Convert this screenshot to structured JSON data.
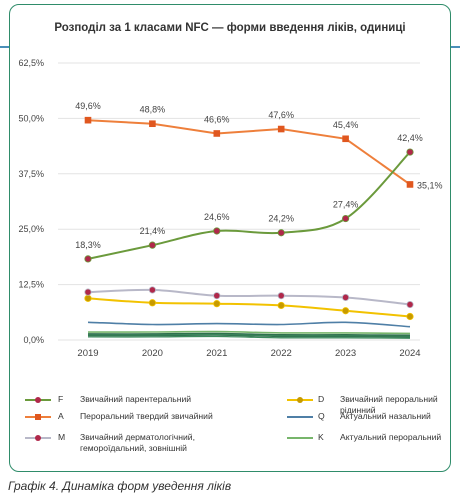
{
  "title": "Розподіл за 1 класами NFC — форми введення ліків, одиниці",
  "caption": "Графік 4. Динаміка форм уведення ліків",
  "colors": {
    "frame": "#2f8c6a",
    "topline": "#4a8fb8",
    "F": "#6b9a3c",
    "A": "#ee7f3b",
    "M": "#b8b8c8",
    "D": "#f2c200",
    "Q": "#4f7fa6",
    "K": "#77b56b",
    "marker": "#b0284a",
    "grid": "#e3e3e3"
  },
  "chart_data": {
    "type": "line",
    "title": "Розподіл за 1 класами NFC — форми введення ліків, одиниці",
    "categories": [
      "2019",
      "2020",
      "2021",
      "2022",
      "2023",
      "2024"
    ],
    "y_ticks": [
      "0,0%",
      "12,5%",
      "25,0%",
      "37,5%",
      "50,0%",
      "62,5%"
    ],
    "ylim": [
      0,
      62.5
    ],
    "grid": true,
    "legend_position": "bottom",
    "series": [
      {
        "code": "F",
        "name": "Звичайний парентеральний",
        "values": [
          18.3,
          21.4,
          24.6,
          24.2,
          27.4,
          42.4
        ],
        "labels": [
          "18,3%",
          "21,4%",
          "24,6%",
          "24,2%",
          "27,4%",
          "42,4%"
        ],
        "smooth": true,
        "markers": "circle"
      },
      {
        "code": "A",
        "name": "Пероральний твердий звичайний",
        "values": [
          49.6,
          48.8,
          46.6,
          47.6,
          45.4,
          35.1
        ],
        "labels": [
          "49,6%",
          "48,8%",
          "46,6%",
          "47,6%",
          "45,4%",
          "35,1%"
        ],
        "smooth": false,
        "markers": "square"
      },
      {
        "code": "M",
        "name": "Звичайний дерматологічний, гемороїдальний, зовнішній",
        "values": [
          10.8,
          11.3,
          10.0,
          10.0,
          9.6,
          8.0
        ],
        "labels": [],
        "smooth": true,
        "markers": "circle"
      },
      {
        "code": "D",
        "name": "Звичайний пероральний рідинний",
        "values": [
          9.4,
          8.4,
          8.2,
          7.8,
          6.6,
          5.3
        ],
        "labels": [],
        "smooth": true,
        "markers": "circle"
      },
      {
        "code": "Q",
        "name": "Актуальний назальний",
        "values": [
          4.0,
          3.5,
          3.7,
          3.5,
          4.0,
          3.0
        ],
        "labels": [],
        "smooth": true,
        "markers": "none"
      },
      {
        "code": "K",
        "name": "Актуальний пероральний",
        "values": [
          1.8,
          1.8,
          1.9,
          1.6,
          1.6,
          1.5
        ],
        "labels": [],
        "smooth": true,
        "markers": "none"
      }
    ]
  }
}
